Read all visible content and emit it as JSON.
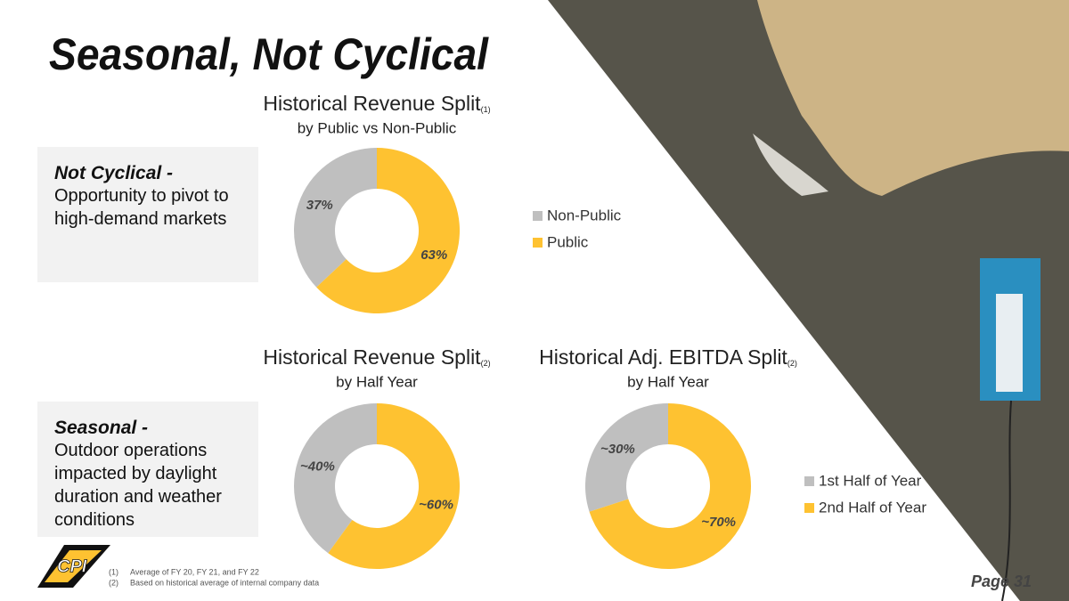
{
  "title": "Seasonal, Not Cyclical",
  "panels": [
    {
      "heading": "Not Cyclical -",
      "text": "Opportunity to pivot to high-demand markets"
    },
    {
      "heading": "Seasonal -",
      "text": "Outdoor operations impacted by daylight duration and weather conditions"
    }
  ],
  "chart_data": [
    {
      "type": "pie",
      "donut": true,
      "title": "Historical Revenue Split",
      "title_note": "(1)",
      "subtitle": "by Public vs Non-Public",
      "categories": [
        "Non-Public",
        "Public"
      ],
      "values": [
        37,
        63
      ],
      "value_labels": [
        "37%",
        "63%"
      ],
      "colors": [
        "#bfbfbf",
        "#fec231"
      ],
      "legend": true
    },
    {
      "type": "pie",
      "donut": true,
      "title": "Historical Revenue Split",
      "title_note": "(2)",
      "subtitle": "by Half Year",
      "categories": [
        "1st Half of Year",
        "2nd Half of Year"
      ],
      "values": [
        40,
        60
      ],
      "value_labels": [
        "~40%",
        "~60%"
      ],
      "colors": [
        "#bfbfbf",
        "#fec231"
      ],
      "legend": false
    },
    {
      "type": "pie",
      "donut": true,
      "title": "Historical Adj. EBITDA Split",
      "title_note": "(2)",
      "subtitle": "by Half Year",
      "categories": [
        "1st Half of Year",
        "2nd Half of Year"
      ],
      "values": [
        30,
        70
      ],
      "value_labels": [
        "~30%",
        "~70%"
      ],
      "colors": [
        "#bfbfbf",
        "#fec231"
      ],
      "legend": true
    }
  ],
  "footnotes": [
    {
      "marker": "(1)",
      "text": "Average of FY 20, FY 21, and FY 22"
    },
    {
      "marker": "(2)",
      "text": "Based on historical average of internal company data"
    }
  ],
  "logo": "CPI",
  "page": "Page 31"
}
